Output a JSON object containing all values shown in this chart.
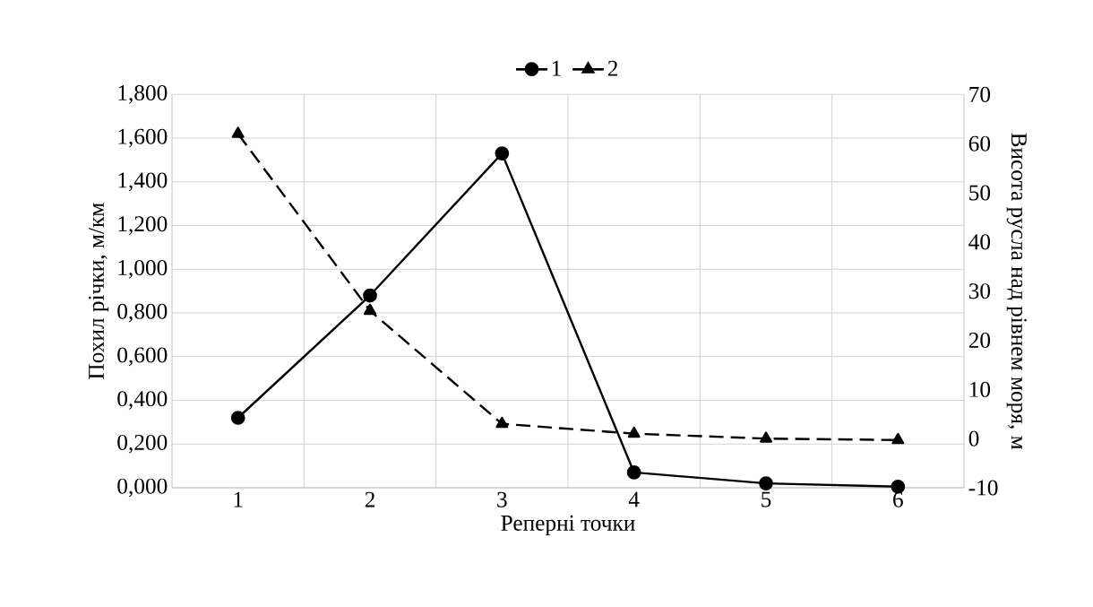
{
  "chart_data": {
    "type": "line",
    "xlabel": "Реперні точки",
    "ylabel": "Похил річки, м/км",
    "y2label": "Висота русла над рівнем моря, м",
    "categories": [
      "1",
      "2",
      "3",
      "4",
      "5",
      "6"
    ],
    "series": [
      {
        "name": "1",
        "color": "#000000",
        "marker": "circle",
        "line_style": "solid",
        "values": [
          0.32,
          0.88,
          1.53,
          0.07,
          0.02,
          0.005
        ]
      },
      {
        "name": "2",
        "color": "#000000",
        "marker": "triangle",
        "line_style": "dashed",
        "axis": "y2",
        "values": [
          62,
          26,
          3,
          1,
          0,
          -0.3
        ]
      }
    ],
    "ylim": [
      0,
      1.8
    ],
    "yticks": [
      {
        "value": 0,
        "label": "0,000"
      },
      {
        "value": 0.2,
        "label": "0,200"
      },
      {
        "value": 0.4,
        "label": "0,400"
      },
      {
        "value": 0.6,
        "label": "0,600"
      },
      {
        "value": 0.8,
        "label": "0,800"
      },
      {
        "value": 1.0,
        "label": "1,000"
      },
      {
        "value": 1.2,
        "label": "1,200"
      },
      {
        "value": 1.4,
        "label": "1,400"
      },
      {
        "value": 1.6,
        "label": "1,600"
      },
      {
        "value": 1.8,
        "label": "1,800"
      }
    ],
    "y2lim": [
      -10,
      70
    ],
    "y2ticks": [
      -10,
      0,
      10,
      20,
      30,
      40,
      50,
      60,
      70
    ],
    "grid": true,
    "legend": "top"
  }
}
